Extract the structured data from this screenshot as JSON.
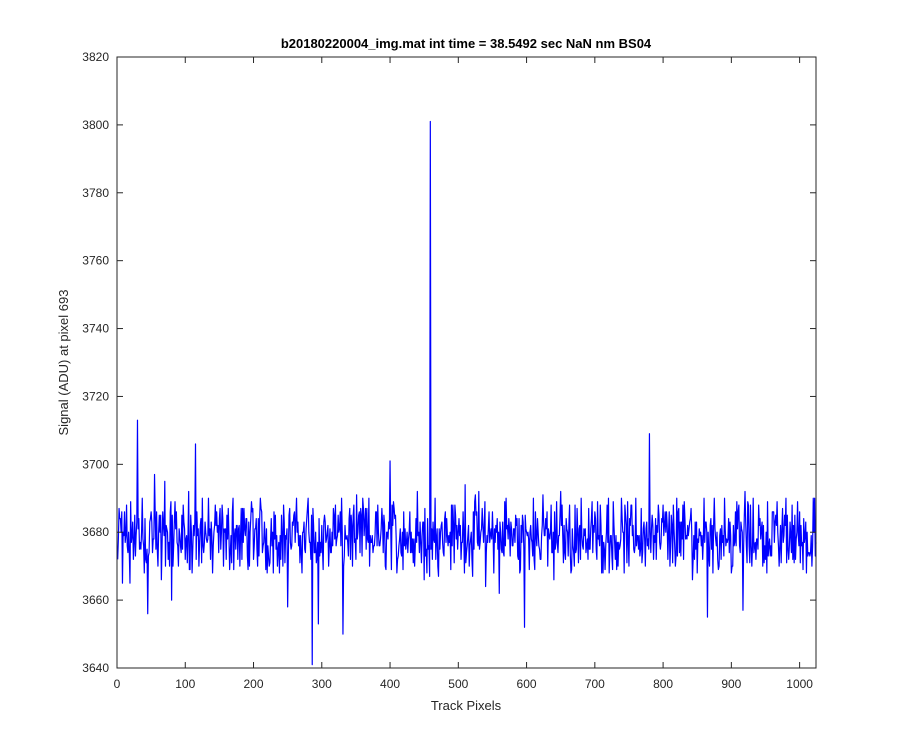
{
  "chart_data": {
    "type": "line",
    "title": "b20180220004_img.mat int time = 38.5492 sec  NaN nm BS04",
    "xlabel": "Track Pixels",
    "ylabel": "Signal (ADU) at pixel 693",
    "xlim": [
      0,
      1024
    ],
    "ylim": [
      3640,
      3820
    ],
    "xticks": [
      0,
      100,
      200,
      300,
      400,
      500,
      600,
      700,
      800,
      900,
      1000
    ],
    "yticks": [
      3640,
      3660,
      3680,
      3700,
      3720,
      3740,
      3760,
      3780,
      3800,
      3820
    ],
    "grid": false,
    "line_color": "#0000ff",
    "baseline": 3679,
    "noise_amplitude": 8,
    "series": [
      {
        "x": [
          1,
          4,
          8,
          11,
          15,
          19,
          23,
          27,
          30,
          33,
          37,
          40,
          45,
          50,
          55,
          60,
          65,
          70,
          75,
          80,
          85,
          90,
          95,
          100,
          105,
          110,
          115,
          120,
          125,
          130,
          140,
          150,
          160,
          170,
          180,
          190,
          200,
          210,
          220,
          230,
          240,
          250,
          260,
          270,
          280,
          286,
          290,
          295,
          300,
          310,
          320,
          331,
          340,
          350,
          360,
          370,
          380,
          390,
          400,
          410,
          420,
          430,
          440,
          450,
          455,
          459,
          462,
          466,
          470,
          480,
          490,
          500,
          510,
          520,
          530,
          540,
          550,
          560,
          570,
          580,
          590,
          597,
          600,
          610,
          620,
          630,
          640,
          650,
          660,
          670,
          680,
          690,
          700,
          710,
          720,
          730,
          740,
          750,
          760,
          770,
          780,
          790,
          800,
          810,
          820,
          830,
          840,
          850,
          860,
          865,
          870,
          880,
          890,
          900,
          910,
          917,
          920,
          930,
          940,
          950,
          960,
          970,
          980,
          990,
          1000,
          1010,
          1020,
          1024
        ],
        "y": [
          3672,
          3684,
          3665,
          3686,
          3676,
          3665,
          3683,
          3673,
          3713,
          3675,
          3690,
          3668,
          3656,
          3686,
          3697,
          3670,
          3666,
          3695,
          3672,
          3660,
          3689,
          3670,
          3685,
          3672,
          3692,
          3668,
          3706,
          3670,
          3690,
          3680,
          3668,
          3684,
          3672,
          3690,
          3670,
          3684,
          3672,
          3690,
          3668,
          3686,
          3672,
          3658,
          3686,
          3674,
          3690,
          3641,
          3674,
          3653,
          3682,
          3670,
          3688,
          3650,
          3684,
          3672,
          3690,
          3670,
          3686,
          3674,
          3701,
          3668,
          3686,
          3674,
          3692,
          3666,
          3684,
          3801,
          3672,
          3690,
          3670,
          3684,
          3688,
          3680,
          3694,
          3672,
          3692,
          3664,
          3686,
          3662,
          3690,
          3676,
          3668,
          3652,
          3680,
          3690,
          3672,
          3686,
          3666,
          3692,
          3680,
          3670,
          3690,
          3672,
          3686,
          3668,
          3690,
          3672,
          3684,
          3670,
          3690,
          3674,
          3709,
          3672,
          3688,
          3670,
          3690,
          3672,
          3684,
          3668,
          3690,
          3655,
          3684,
          3672,
          3690,
          3668,
          3686,
          3657,
          3692,
          3670,
          3688,
          3672,
          3686,
          3670,
          3690,
          3672,
          3686,
          3668,
          3690,
          3677
        ]
      }
    ]
  }
}
